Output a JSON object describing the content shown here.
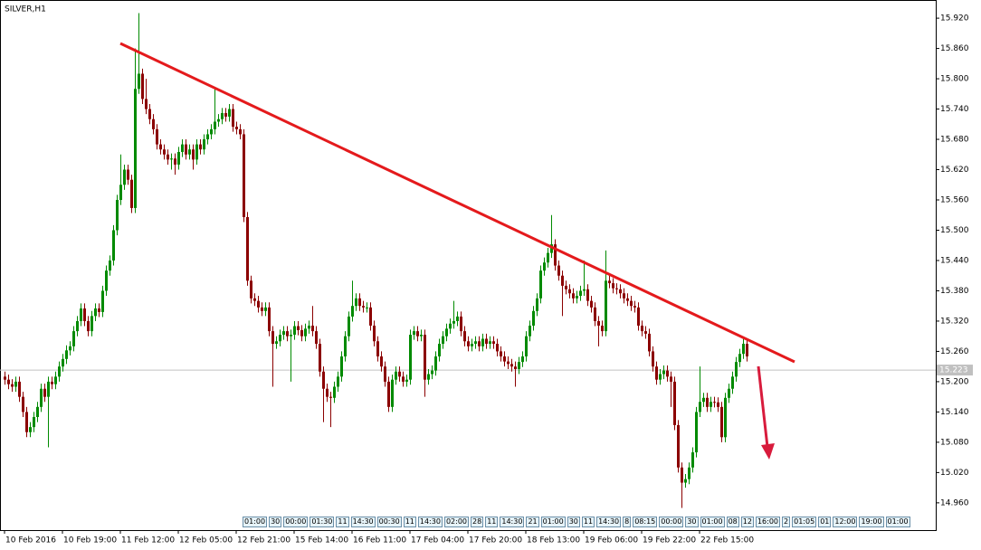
{
  "chart_data": {
    "type": "candlestick",
    "title": "SILVER,H1",
    "categories": [
      "10 Feb 2016",
      null,
      null,
      null,
      null,
      null,
      null,
      null,
      null,
      null,
      null,
      null,
      null,
      null,
      null,
      null,
      "10 Feb 19:00",
      null,
      null,
      null,
      null,
      null,
      null,
      null,
      null,
      null,
      null,
      null,
      null,
      null,
      null,
      null,
      "11 Feb 12:00",
      null,
      null,
      null,
      null,
      null,
      null,
      null,
      null,
      null,
      null,
      null,
      null,
      null,
      null,
      null,
      "12 Feb 05:00",
      null,
      null,
      null,
      null,
      null,
      null,
      null,
      null,
      null,
      null,
      null,
      null,
      null,
      null,
      null,
      "12 Feb 21:00",
      null,
      null,
      null,
      null,
      null,
      null,
      null,
      null,
      null,
      null,
      null,
      null,
      null,
      null,
      null,
      "15 Feb 14:00",
      null,
      null,
      null,
      null,
      null,
      null,
      null,
      null,
      null,
      null,
      null,
      null,
      null,
      null,
      null,
      "16 Feb 11:00",
      null,
      null,
      null,
      null,
      null,
      null,
      null,
      null,
      null,
      null,
      null,
      null,
      null,
      null,
      null,
      "17 Feb 04:00",
      null,
      null,
      null,
      null,
      null,
      null,
      null,
      null,
      null,
      null,
      null,
      null,
      null,
      null,
      null,
      "17 Feb 20:00",
      null,
      null,
      null,
      null,
      null,
      null,
      null,
      null,
      null,
      null,
      null,
      null,
      null,
      null,
      null,
      "18 Feb 13:00",
      null,
      null,
      null,
      null,
      null,
      null,
      null,
      null,
      null,
      null,
      null,
      null,
      null,
      null,
      null,
      "19 Feb 06:00",
      null,
      null,
      null,
      null,
      null,
      null,
      null,
      null,
      null,
      null,
      null,
      null,
      null,
      null,
      null,
      "19 Feb 22:00",
      null,
      null,
      null,
      null,
      null,
      null,
      null,
      null,
      null,
      null,
      null,
      null,
      null,
      null,
      null,
      "22 Feb 15:00",
      null,
      null,
      null,
      null,
      null,
      null,
      null,
      null,
      null,
      null,
      null,
      null,
      null
    ],
    "open": [
      15.21,
      15.204,
      15.195,
      15.19,
      15.2,
      15.17,
      15.14,
      15.1,
      15.11,
      15.13,
      15.15,
      15.186,
      15.17,
      15.2,
      15.195,
      15.21,
      15.23,
      15.245,
      15.262,
      15.27,
      15.3,
      15.32,
      15.345,
      15.32,
      15.3,
      15.33,
      15.345,
      15.338,
      15.38,
      15.42,
      15.44,
      15.5,
      15.56,
      15.59,
      15.62,
      15.6,
      15.544,
      15.78,
      15.81,
      15.76,
      15.74,
      15.72,
      15.7,
      15.67,
      15.66,
      15.65,
      15.64,
      15.642,
      15.63,
      15.655,
      15.67,
      15.65,
      15.66,
      15.64,
      15.67,
      15.66,
      15.68,
      15.69,
      15.7,
      15.715,
      15.72,
      15.732,
      15.725,
      15.74,
      15.705,
      15.7,
      15.69,
      15.526,
      15.4,
      15.365,
      15.36,
      15.347,
      15.34,
      15.347,
      15.3,
      15.275,
      15.28,
      15.293,
      15.3,
      15.29,
      15.293,
      15.31,
      15.302,
      15.29,
      15.305,
      15.311,
      15.3,
      15.275,
      15.22,
      15.186,
      15.17,
      15.168,
      15.19,
      15.21,
      15.25,
      15.29,
      15.329,
      15.35,
      15.365,
      15.35,
      15.347,
      15.347,
      15.311,
      15.28,
      15.25,
      15.23,
      15.2,
      15.15,
      15.204,
      15.22,
      15.21,
      15.2,
      15.204,
      15.293,
      15.3,
      15.29,
      15.293,
      15.204,
      15.215,
      15.222,
      15.25,
      15.275,
      15.29,
      15.305,
      15.315,
      15.32,
      15.329,
      15.3,
      15.28,
      15.27,
      15.275,
      15.28,
      15.27,
      15.285,
      15.275,
      15.28,
      15.275,
      15.26,
      15.25,
      15.24,
      15.235,
      15.23,
      15.225,
      15.239,
      15.25,
      15.29,
      15.311,
      15.34,
      15.365,
      15.42,
      15.436,
      15.455,
      15.472,
      15.43,
      15.41,
      15.39,
      15.383,
      15.375,
      15.365,
      15.37,
      15.38,
      15.383,
      15.36,
      15.347,
      15.32,
      15.311,
      15.3,
      15.4,
      15.395,
      15.385,
      15.383,
      15.375,
      15.365,
      15.36,
      15.35,
      15.347,
      15.311,
      15.3,
      15.295,
      15.26,
      15.23,
      15.204,
      15.215,
      15.222,
      15.21,
      15.2,
      15.114,
      15.03,
      15.0,
      15.007,
      15.03,
      15.06,
      15.14,
      15.16,
      15.168,
      15.15,
      15.16,
      15.159,
      15.15,
      15.09,
      15.168,
      15.186,
      15.21,
      15.239,
      15.255,
      15.275
    ],
    "high": [
      15.22,
      15.214,
      15.205,
      15.21,
      15.21,
      15.18,
      15.15,
      15.12,
      15.14,
      15.16,
      15.196,
      15.196,
      15.21,
      15.21,
      15.22,
      15.24,
      15.255,
      15.272,
      15.28,
      15.31,
      15.33,
      15.355,
      15.355,
      15.33,
      15.34,
      15.355,
      15.355,
      15.39,
      15.43,
      15.45,
      15.51,
      15.57,
      15.65,
      15.63,
      15.63,
      15.61,
      15.86,
      15.93,
      15.82,
      15.8,
      15.75,
      15.73,
      15.71,
      15.68,
      15.67,
      15.66,
      15.652,
      15.652,
      15.665,
      15.68,
      15.68,
      15.67,
      15.67,
      15.68,
      15.68,
      15.69,
      15.7,
      15.71,
      15.78,
      15.73,
      15.742,
      15.742,
      15.75,
      15.75,
      15.715,
      15.71,
      15.7,
      15.536,
      15.41,
      15.375,
      15.37,
      15.357,
      15.357,
      15.357,
      15.31,
      15.29,
      15.303,
      15.31,
      15.31,
      15.303,
      15.32,
      15.32,
      15.312,
      15.315,
      15.321,
      15.35,
      15.31,
      15.285,
      15.23,
      15.196,
      15.18,
      15.2,
      15.22,
      15.26,
      15.3,
      15.339,
      15.4,
      15.375,
      15.375,
      15.36,
      15.357,
      15.357,
      15.321,
      15.29,
      15.26,
      15.24,
      15.21,
      15.214,
      15.23,
      15.23,
      15.22,
      15.214,
      15.303,
      15.31,
      15.31,
      15.303,
      15.303,
      15.225,
      15.232,
      15.26,
      15.285,
      15.3,
      15.315,
      15.325,
      15.36,
      15.339,
      15.339,
      15.31,
      15.29,
      15.285,
      15.29,
      15.29,
      15.295,
      15.295,
      15.29,
      15.29,
      15.285,
      15.27,
      15.26,
      15.25,
      15.245,
      15.24,
      15.249,
      15.26,
      15.3,
      15.321,
      15.35,
      15.375,
      15.43,
      15.446,
      15.465,
      15.53,
      15.482,
      15.44,
      15.42,
      15.4,
      15.393,
      15.385,
      15.38,
      15.39,
      15.44,
      15.393,
      15.37,
      15.357,
      15.33,
      15.321,
      15.46,
      15.41,
      15.405,
      15.395,
      15.393,
      15.385,
      15.375,
      15.37,
      15.36,
      15.357,
      15.321,
      15.31,
      15.305,
      15.27,
      15.24,
      15.225,
      15.232,
      15.232,
      15.22,
      15.21,
      15.124,
      15.04,
      15.017,
      15.04,
      15.07,
      15.15,
      15.23,
      15.178,
      15.178,
      15.17,
      15.17,
      15.169,
      15.16,
      15.178,
      15.196,
      15.22,
      15.249,
      15.265,
      15.285,
      15.285
    ],
    "low": [
      15.194,
      15.185,
      15.18,
      15.18,
      15.16,
      15.13,
      15.09,
      15.09,
      15.1,
      15.12,
      15.14,
      15.16,
      15.07,
      15.185,
      15.185,
      15.2,
      15.22,
      15.235,
      15.252,
      15.26,
      15.29,
      15.31,
      15.31,
      15.29,
      15.29,
      15.32,
      15.328,
      15.328,
      15.37,
      15.41,
      15.43,
      15.49,
      15.55,
      15.58,
      15.59,
      15.534,
      15.534,
      15.77,
      15.75,
      15.73,
      15.71,
      15.69,
      15.66,
      15.65,
      15.64,
      15.63,
      15.62,
      15.61,
      15.62,
      15.645,
      15.64,
      15.64,
      15.62,
      15.63,
      15.65,
      15.65,
      15.67,
      15.68,
      15.69,
      15.705,
      15.71,
      15.715,
      15.715,
      15.695,
      15.69,
      15.68,
      15.516,
      15.39,
      15.355,
      15.35,
      15.337,
      15.33,
      15.33,
      15.29,
      15.19,
      15.265,
      15.27,
      15.283,
      15.28,
      15.2,
      15.283,
      15.292,
      15.28,
      15.28,
      15.295,
      15.29,
      15.265,
      15.21,
      15.12,
      15.16,
      15.11,
      15.158,
      15.18,
      15.2,
      15.24,
      15.28,
      15.319,
      15.34,
      15.34,
      15.337,
      15.337,
      15.301,
      15.27,
      15.24,
      15.22,
      15.19,
      15.14,
      15.14,
      15.194,
      15.2,
      15.19,
      15.19,
      15.194,
      15.283,
      15.28,
      15.28,
      15.17,
      15.194,
      15.205,
      15.212,
      15.24,
      15.265,
      15.28,
      15.295,
      15.305,
      15.31,
      15.29,
      15.27,
      15.26,
      15.26,
      15.265,
      15.26,
      15.26,
      15.265,
      15.265,
      15.265,
      15.25,
      15.24,
      15.23,
      15.225,
      15.22,
      15.19,
      15.215,
      15.229,
      15.24,
      15.28,
      15.301,
      15.33,
      15.355,
      15.41,
      15.426,
      15.445,
      15.42,
      15.4,
      15.33,
      15.373,
      15.365,
      15.355,
      15.355,
      15.36,
      15.37,
      15.35,
      15.337,
      15.31,
      15.27,
      15.29,
      15.29,
      15.385,
      15.375,
      15.373,
      15.365,
      15.355,
      15.35,
      15.34,
      15.337,
      15.301,
      15.29,
      15.285,
      15.25,
      15.22,
      15.194,
      15.194,
      15.205,
      15.2,
      15.15,
      15.104,
      15.02,
      14.95,
      14.99,
      14.997,
      15.02,
      15.05,
      15.13,
      15.15,
      15.14,
      15.14,
      15.149,
      15.14,
      15.08,
      15.08,
      15.158,
      15.176,
      15.2,
      15.229,
      15.245,
      15.24
    ],
    "close": [
      15.204,
      15.195,
      15.19,
      15.2,
      15.17,
      15.14,
      15.1,
      15.11,
      15.13,
      15.15,
      15.186,
      15.17,
      15.2,
      15.195,
      15.21,
      15.23,
      15.245,
      15.262,
      15.27,
      15.3,
      15.32,
      15.345,
      15.32,
      15.3,
      15.33,
      15.345,
      15.338,
      15.38,
      15.42,
      15.44,
      15.5,
      15.56,
      15.59,
      15.62,
      15.6,
      15.544,
      15.78,
      15.81,
      15.76,
      15.74,
      15.72,
      15.7,
      15.67,
      15.66,
      15.65,
      15.64,
      15.642,
      15.63,
      15.655,
      15.67,
      15.65,
      15.66,
      15.64,
      15.67,
      15.66,
      15.68,
      15.69,
      15.7,
      15.715,
      15.72,
      15.732,
      15.725,
      15.74,
      15.705,
      15.7,
      15.69,
      15.526,
      15.4,
      15.365,
      15.36,
      15.347,
      15.34,
      15.347,
      15.3,
      15.275,
      15.28,
      15.293,
      15.3,
      15.29,
      15.293,
      15.31,
      15.302,
      15.29,
      15.305,
      15.311,
      15.3,
      15.275,
      15.22,
      15.186,
      15.17,
      15.168,
      15.19,
      15.21,
      15.25,
      15.29,
      15.329,
      15.35,
      15.365,
      15.35,
      15.347,
      15.347,
      15.311,
      15.28,
      15.25,
      15.23,
      15.2,
      15.15,
      15.204,
      15.22,
      15.21,
      15.2,
      15.204,
      15.293,
      15.3,
      15.29,
      15.293,
      15.204,
      15.215,
      15.222,
      15.25,
      15.275,
      15.29,
      15.305,
      15.315,
      15.32,
      15.329,
      15.3,
      15.28,
      15.27,
      15.275,
      15.28,
      15.27,
      15.285,
      15.275,
      15.28,
      15.275,
      15.26,
      15.25,
      15.24,
      15.235,
      15.23,
      15.225,
      15.239,
      15.25,
      15.29,
      15.311,
      15.34,
      15.365,
      15.42,
      15.436,
      15.455,
      15.472,
      15.43,
      15.41,
      15.39,
      15.383,
      15.375,
      15.365,
      15.37,
      15.38,
      15.383,
      15.36,
      15.347,
      15.32,
      15.311,
      15.3,
      15.4,
      15.395,
      15.385,
      15.383,
      15.375,
      15.365,
      15.36,
      15.35,
      15.347,
      15.311,
      15.3,
      15.295,
      15.26,
      15.23,
      15.204,
      15.215,
      15.222,
      15.21,
      15.2,
      15.114,
      15.03,
      15.0,
      15.007,
      15.03,
      15.06,
      15.14,
      15.16,
      15.168,
      15.15,
      15.16,
      15.159,
      15.15,
      15.09,
      15.168,
      15.186,
      15.21,
      15.239,
      15.255,
      15.275,
      15.25
    ],
    "up_color": "#008a00",
    "down_color": "#8b0000",
    "ylim": [
      14.906,
      15.956
    ],
    "yticks": [
      {
        "value": 15.92,
        "label": "15.920"
      },
      {
        "value": 15.86,
        "label": "15.860"
      },
      {
        "value": 15.8,
        "label": "15.800"
      },
      {
        "value": 15.74,
        "label": "15.740"
      },
      {
        "value": 15.68,
        "label": "15.680"
      },
      {
        "value": 15.62,
        "label": "15.620"
      },
      {
        "value": 15.56,
        "label": "15.560"
      },
      {
        "value": 15.5,
        "label": "15.500"
      },
      {
        "value": 15.44,
        "label": "15.440"
      },
      {
        "value": 15.38,
        "label": "15.380"
      },
      {
        "value": 15.32,
        "label": "15.320"
      },
      {
        "value": 15.26,
        "label": "15.260"
      },
      {
        "value": 15.2,
        "label": "15.200"
      },
      {
        "value": 15.14,
        "label": "15.140"
      },
      {
        "value": 15.08,
        "label": "15.080"
      },
      {
        "value": 15.02,
        "label": "15.020"
      },
      {
        "value": 14.96,
        "label": "14.960"
      }
    ],
    "current_price": 15.223,
    "time_markers": [
      "01:00",
      "30",
      "00:00",
      "01:30",
      "11",
      "14:30",
      "00:30",
      "11",
      "14:30",
      "02:00",
      "28",
      "11",
      "14:30",
      "21",
      "01:00",
      "30",
      "11",
      "14:30",
      "8",
      "08:15",
      "00:00",
      "30",
      "01:00",
      "08",
      "12",
      "16:00",
      "2",
      "01:05",
      "01",
      "12:00",
      "19:00",
      "01:00"
    ]
  }
}
